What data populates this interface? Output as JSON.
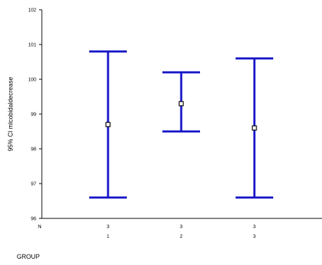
{
  "chart_data": {
    "type": "errorbar",
    "xlabel": "GROUP",
    "ylabel": "95% CI mlcobidaldecrease",
    "n_label": "N",
    "categories": [
      "1",
      "2",
      "3"
    ],
    "n_values": [
      "3",
      "3",
      "3"
    ],
    "ylim": [
      96,
      102
    ],
    "yticks": [
      "96",
      "97",
      "98",
      "99",
      "100",
      "101",
      "102"
    ],
    "series": [
      {
        "means": [
          98.7,
          99.3,
          98.6
        ],
        "lower": [
          96.6,
          98.5,
          96.6
        ],
        "upper": [
          100.8,
          100.2,
          100.6
        ]
      }
    ],
    "bar_color": "#1414c8",
    "marker_color": "#000000",
    "grid": false
  }
}
